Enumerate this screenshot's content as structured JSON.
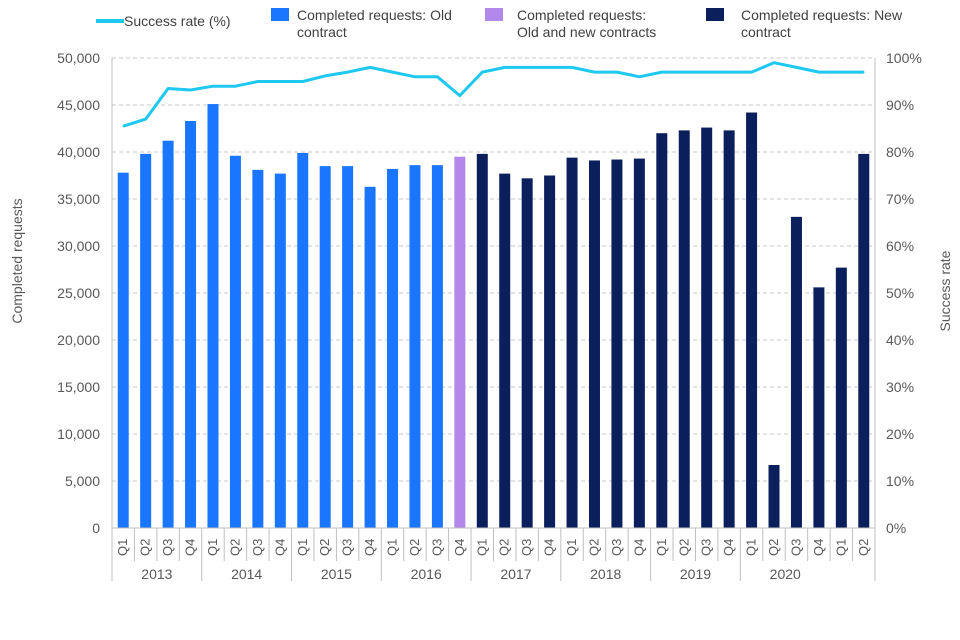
{
  "chart_data": {
    "type": "bar",
    "x_quarters": [
      "Q1",
      "Q2",
      "Q3",
      "Q4",
      "Q1",
      "Q2",
      "Q3",
      "Q4",
      "Q1",
      "Q2",
      "Q3",
      "Q4",
      "Q1",
      "Q2",
      "Q3",
      "Q4",
      "Q1",
      "Q2",
      "Q3",
      "Q4",
      "Q1",
      "Q2",
      "Q3",
      "Q4",
      "Q1",
      "Q2",
      "Q3",
      "Q4",
      "Q1",
      "Q2",
      "Q3",
      "Q4",
      "Q1",
      "Q2"
    ],
    "x_years": [
      "2013",
      "2014",
      "2015",
      "2016",
      "2017",
      "2018",
      "2019",
      "2020"
    ],
    "series": [
      {
        "name": "Completed requests: Old contract",
        "axis": "left",
        "kind": "bar",
        "color": "#1a75ff",
        "values": [
          37800,
          39800,
          41200,
          43300,
          45100,
          39600,
          38100,
          37700,
          39900,
          38500,
          38500,
          36300,
          38200,
          38600,
          38600,
          null,
          null,
          null,
          null,
          null,
          null,
          null,
          null,
          null,
          null,
          null,
          null,
          null,
          null,
          null,
          null,
          null,
          null,
          null
        ]
      },
      {
        "name": "Completed requests: Old and new contracts",
        "axis": "left",
        "kind": "bar",
        "color": "#b388eb",
        "values": [
          null,
          null,
          null,
          null,
          null,
          null,
          null,
          null,
          null,
          null,
          null,
          null,
          null,
          null,
          null,
          39500,
          null,
          null,
          null,
          null,
          null,
          null,
          null,
          null,
          null,
          null,
          null,
          null,
          null,
          null,
          null,
          null,
          null,
          null
        ]
      },
      {
        "name": "Completed requests: New contract",
        "axis": "left",
        "kind": "bar",
        "color": "#0b1f5c",
        "values": [
          null,
          null,
          null,
          null,
          null,
          null,
          null,
          null,
          null,
          null,
          null,
          null,
          null,
          null,
          null,
          null,
          39800,
          37700,
          37200,
          37500,
          39400,
          39100,
          39200,
          39300,
          42000,
          42300,
          42600,
          42300,
          44200,
          6700,
          33100,
          25600,
          27700,
          39800
        ]
      },
      {
        "name": "Success rate (%)",
        "axis": "right",
        "kind": "line",
        "color": "#1ec8f0",
        "values": [
          85.5,
          87,
          93.5,
          93.2,
          94,
          94,
          95,
          95,
          95,
          96.2,
          97,
          98,
          97,
          96,
          96,
          92,
          97,
          98,
          98,
          98,
          98,
          97,
          97,
          96,
          97,
          97,
          97,
          97,
          97,
          99,
          98,
          97,
          97,
          97
        ]
      }
    ],
    "left_axis": {
      "title": "Completed requests",
      "ylim": [
        0,
        50000
      ],
      "ticks": [
        "0",
        "5,000",
        "10,000",
        "15,000",
        "20,000",
        "25,000",
        "30,000",
        "35,000",
        "40,000",
        "45,000",
        "50,000"
      ]
    },
    "right_axis": {
      "title": "Success rate",
      "ylim": [
        0,
        100
      ],
      "ticks": [
        "0%",
        "10%",
        "20%",
        "30%",
        "40%",
        "50%",
        "60%",
        "70%",
        "80%",
        "90%",
        "100%"
      ]
    },
    "grid": true,
    "legend_position": "top",
    "legend": {
      "line_label": "Success rate (%)",
      "old_line1": "Completed requests: Old",
      "old_line2": "contract",
      "mixed_line1": "Completed requests:",
      "mixed_line2": "Old and new contracts",
      "new_line1": "Completed requests: New",
      "new_line2": "contract"
    }
  }
}
